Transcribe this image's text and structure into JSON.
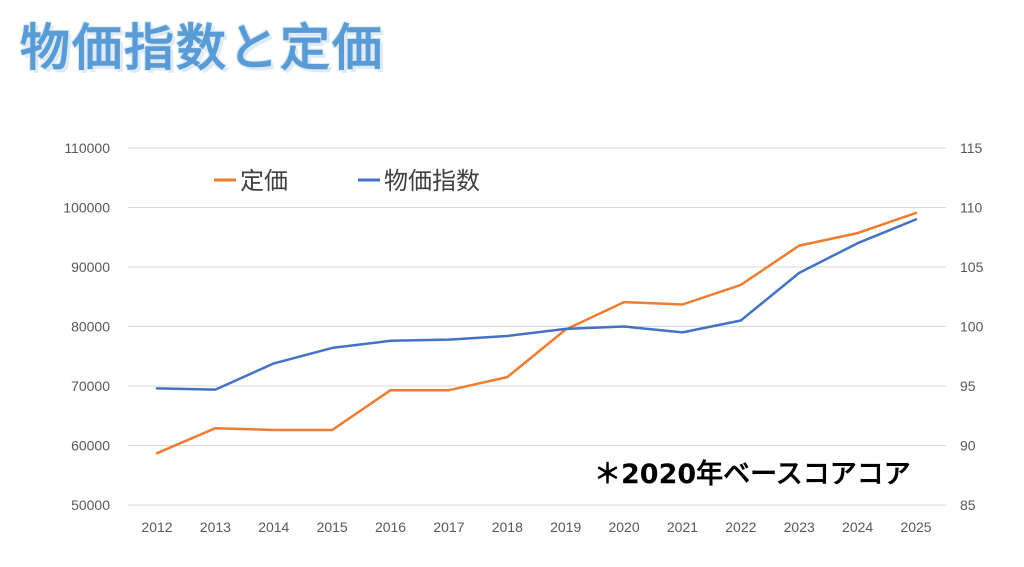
{
  "title": "物価指数と定価",
  "note": "＊2020年ベースコアコア",
  "chart_data": {
    "type": "line",
    "categories": [
      "2012",
      "2013",
      "2014",
      "2015",
      "2016",
      "2017",
      "2018",
      "2019",
      "2020",
      "2021",
      "2022",
      "2023",
      "2024",
      "2025"
    ],
    "series": [
      {
        "name": "定価",
        "axis": "left",
        "color": "#ed7d31",
        "values": [
          58700,
          62900,
          62600,
          62600,
          69300,
          69300,
          71500,
          79500,
          84100,
          83700,
          87000,
          93600,
          95700,
          99100
        ]
      },
      {
        "name": "物価指数",
        "axis": "right",
        "color": "#4472c4",
        "values": [
          94.8,
          94.7,
          96.9,
          98.2,
          98.8,
          98.9,
          99.2,
          99.8,
          100.0,
          99.5,
          100.5,
          104.5,
          107.0,
          109.0
        ]
      }
    ],
    "y_left": {
      "min": 50000,
      "max": 110000,
      "step": 10000,
      "ticks": [
        "50000",
        "60000",
        "70000",
        "80000",
        "90000",
        "100000",
        "110000"
      ]
    },
    "y_right": {
      "min": 85,
      "max": 115,
      "step": 5,
      "ticks": [
        "85",
        "90",
        "95",
        "100",
        "105",
        "110",
        "115"
      ]
    },
    "grid": true,
    "legend": "top-left"
  }
}
